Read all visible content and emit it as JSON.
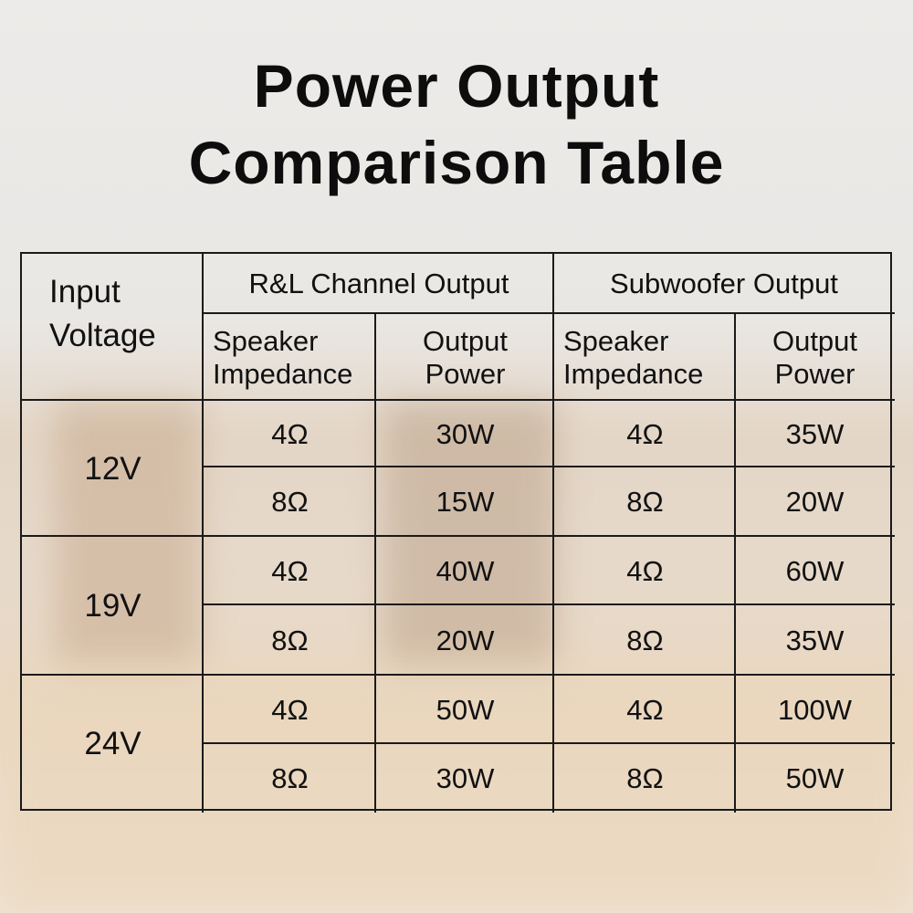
{
  "title_line1": "Power Output",
  "title_line2": "Comparison Table",
  "table": {
    "header": {
      "input_voltage_line1": "Input",
      "input_voltage_line2": "Voltage",
      "rl_group": "R&L Channel Output",
      "sub_group": "Subwoofer Output",
      "impedance_line1": "Speaker",
      "impedance_line2": "Impedance",
      "power_line1": "Output",
      "power_line2": "Power"
    },
    "groups": [
      {
        "voltage": "12V",
        "rows": [
          {
            "rl_imp": "4Ω",
            "rl_pow": "30W",
            "sub_imp": "4Ω",
            "sub_pow": "35W"
          },
          {
            "rl_imp": "8Ω",
            "rl_pow": "15W",
            "sub_imp": "8Ω",
            "sub_pow": "20W"
          }
        ]
      },
      {
        "voltage": "19V",
        "rows": [
          {
            "rl_imp": "4Ω",
            "rl_pow": "40W",
            "sub_imp": "4Ω",
            "sub_pow": "60W"
          },
          {
            "rl_imp": "8Ω",
            "rl_pow": "20W",
            "sub_imp": "8Ω",
            "sub_pow": "35W"
          }
        ]
      },
      {
        "voltage": "24V",
        "rows": [
          {
            "rl_imp": "4Ω",
            "rl_pow": "50W",
            "sub_imp": "4Ω",
            "sub_pow": "100W"
          },
          {
            "rl_imp": "8Ω",
            "rl_pow": "30W",
            "sub_imp": "8Ω",
            "sub_pow": "50W"
          }
        ]
      }
    ]
  }
}
